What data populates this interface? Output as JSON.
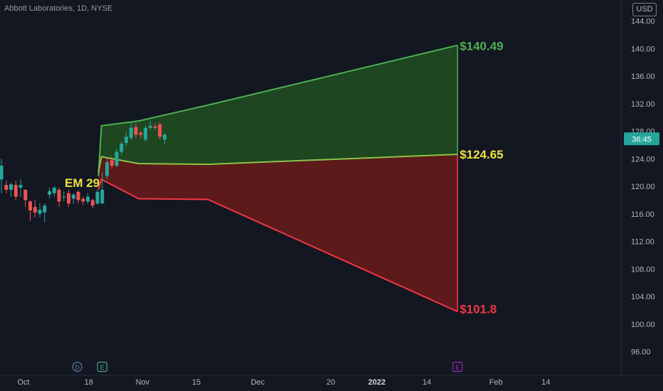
{
  "header": {
    "title": "Abbott Laboratories, 1D, NYSE",
    "currency": "USD"
  },
  "price_tag": {
    "label": "36:45",
    "value": 126.9
  },
  "chart_data": {
    "type": "candlestick",
    "title": "Abbott Laboratories, 1D, NYSE",
    "ylim": [
      94,
      148
    ],
    "y_ticks": [
      96,
      100,
      104,
      108,
      112,
      116,
      120,
      124,
      128,
      132,
      136,
      140,
      144
    ],
    "y_tick_labels": [
      "96.00",
      "100.00",
      "104.00",
      "108.00",
      "112.00",
      "116.00",
      "120.00",
      "124.00",
      "128.00",
      "132.00",
      "136.00",
      "140.00",
      "144.00"
    ],
    "x_ticks": [
      {
        "label": "Oct",
        "bold": false,
        "day": 0
      },
      {
        "label": "18",
        "bold": false,
        "day": 17
      },
      {
        "label": "Nov",
        "bold": false,
        "day": 31
      },
      {
        "label": "15",
        "bold": false,
        "day": 45
      },
      {
        "label": "Dec",
        "bold": false,
        "day": 61
      },
      {
        "label": "20",
        "bold": false,
        "day": 80
      },
      {
        "label": "2022",
        "bold": true,
        "day": 92
      },
      {
        "label": "14",
        "bold": false,
        "day": 105
      },
      {
        "label": "Feb",
        "bold": false,
        "day": 123
      },
      {
        "label": "14",
        "bold": false,
        "day": 136
      }
    ],
    "candles": [
      {
        "open": 121.0,
        "high": 124.0,
        "low": 119.0,
        "close": 123.0
      },
      {
        "open": 120.2,
        "high": 120.8,
        "low": 119.0,
        "close": 119.5
      },
      {
        "open": 119.5,
        "high": 120.5,
        "low": 118.5,
        "close": 120.3
      },
      {
        "open": 120.2,
        "high": 120.8,
        "low": 118.0,
        "close": 118.5
      },
      {
        "open": 119.8,
        "high": 121.0,
        "low": 118.5,
        "close": 120.2
      },
      {
        "open": 119.5,
        "high": 119.5,
        "low": 117.0,
        "close": 118.0
      },
      {
        "open": 117.8,
        "high": 118.0,
        "low": 115.0,
        "close": 116.5
      },
      {
        "open": 117.0,
        "high": 118.0,
        "low": 115.5,
        "close": 116.2
      },
      {
        "open": 116.0,
        "high": 117.5,
        "low": 115.5,
        "close": 116.6
      },
      {
        "open": 116.2,
        "high": 117.5,
        "low": 114.8,
        "close": 117.2
      },
      {
        "open": 118.8,
        "high": 119.8,
        "low": 118.2,
        "close": 119.3
      },
      {
        "open": 119.0,
        "high": 120.0,
        "low": 118.5,
        "close": 119.8
      },
      {
        "open": 119.5,
        "high": 119.8,
        "low": 117.0,
        "close": 117.8
      },
      {
        "open": 118.5,
        "high": 119.3,
        "low": 117.8,
        "close": 118.5
      },
      {
        "open": 119.0,
        "high": 119.5,
        "low": 117.0,
        "close": 117.5
      },
      {
        "open": 118.2,
        "high": 119.0,
        "low": 117.5,
        "close": 118.8
      },
      {
        "open": 119.2,
        "high": 119.5,
        "low": 117.5,
        "close": 118.0
      },
      {
        "open": 118.2,
        "high": 118.5,
        "low": 117.3,
        "close": 117.8
      },
      {
        "open": 117.8,
        "high": 119.0,
        "low": 117.5,
        "close": 118.5
      },
      {
        "open": 118.0,
        "high": 118.2,
        "low": 116.8,
        "close": 117.2
      },
      {
        "open": 117.5,
        "high": 119.5,
        "low": 117.3,
        "close": 119.2
      },
      {
        "open": 117.5,
        "high": 122.0,
        "low": 117.5,
        "close": 119.5
      },
      {
        "open": 121.5,
        "high": 124.0,
        "low": 121.0,
        "close": 123.5
      },
      {
        "open": 123.8,
        "high": 124.3,
        "low": 122.5,
        "close": 123.0
      },
      {
        "open": 123.0,
        "high": 125.5,
        "low": 122.8,
        "close": 125.0
      },
      {
        "open": 125.0,
        "high": 126.5,
        "low": 124.5,
        "close": 126.2
      },
      {
        "open": 126.3,
        "high": 127.8,
        "low": 125.8,
        "close": 127.2
      },
      {
        "open": 127.0,
        "high": 129.3,
        "low": 126.8,
        "close": 128.5
      },
      {
        "open": 128.6,
        "high": 129.2,
        "low": 127.0,
        "close": 127.5
      },
      {
        "open": 127.8,
        "high": 128.0,
        "low": 127.0,
        "close": 127.5
      },
      {
        "open": 126.8,
        "high": 128.8,
        "low": 126.5,
        "close": 128.5
      },
      {
        "open": 128.5,
        "high": 129.5,
        "low": 128.2,
        "close": 128.8
      },
      {
        "open": 128.7,
        "high": 129.2,
        "low": 128.2,
        "close": 128.5
      },
      {
        "open": 129.0,
        "high": 129.3,
        "low": 126.8,
        "close": 127.2
      },
      {
        "open": 126.8,
        "high": 127.8,
        "low": 126.2,
        "close": 127.5
      }
    ],
    "expected_move": {
      "label": "EM 29",
      "upper": [
        {
          "day": 19.5,
          "value": 121.5
        },
        {
          "day": 20.3,
          "value": 128.8
        },
        {
          "day": 30,
          "value": 129.5
        },
        {
          "day": 48,
          "value": 131.8
        },
        {
          "day": 113,
          "value": 140.49
        }
      ],
      "mid": [
        {
          "day": 19.5,
          "value": 122.0
        },
        {
          "day": 20.3,
          "value": 124.3
        },
        {
          "day": 30,
          "value": 123.3
        },
        {
          "day": 48,
          "value": 123.2
        },
        {
          "day": 113,
          "value": 124.65
        }
      ],
      "lower": [
        {
          "day": 19.5,
          "value": 119.5
        },
        {
          "day": 20.3,
          "value": 121.0
        },
        {
          "day": 30,
          "value": 118.2
        },
        {
          "day": 48,
          "value": 118.1
        },
        {
          "day": 113,
          "value": 101.8
        }
      ],
      "upper_label": "$140.49",
      "mid_label": "$124.65",
      "lower_label": "$101.8",
      "colors": {
        "upper_fill": "#1e4620",
        "upper_line": "#4caf50",
        "lower_fill": "#5c1a1a",
        "lower_line": "#f23645",
        "mid_line": "#8bc34a",
        "upper_text": "#4caf50",
        "mid_text": "#f0e040",
        "lower_text": "#f23645",
        "em_text": "#f0e040"
      }
    },
    "event_markers": [
      {
        "letter": "D",
        "day": 14,
        "color": "#5d7a9a"
      },
      {
        "letter": "E",
        "day": 20.5,
        "color": "#4aa28e"
      },
      {
        "letter": "E",
        "day": 113,
        "color": "#9c27b0"
      }
    ],
    "colors": {
      "up": "#26a69a",
      "down": "#ef5350",
      "background": "#131722"
    }
  }
}
